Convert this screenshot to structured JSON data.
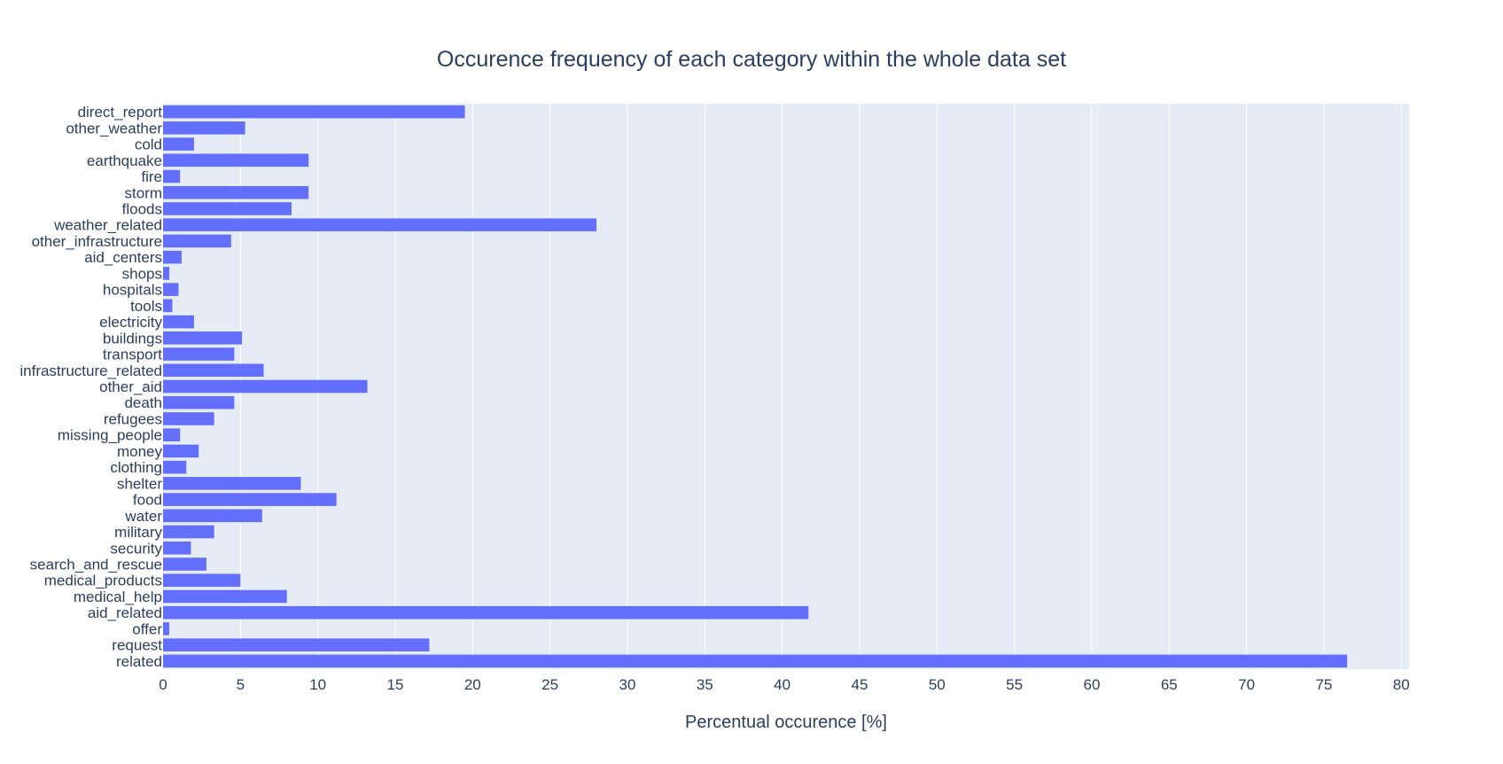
{
  "chart_data": {
    "type": "bar",
    "orientation": "horizontal",
    "title": "Occurence frequency of each category within the whole data set",
    "xlabel": "Percentual occurence [%]",
    "ylabel": "",
    "xlim": [
      0,
      80.5
    ],
    "xticks": [
      0,
      5,
      10,
      15,
      20,
      25,
      30,
      35,
      40,
      45,
      50,
      55,
      60,
      65,
      70,
      75,
      80
    ],
    "grid": true,
    "legend": "none",
    "colors": {
      "bar": "#636efa",
      "plot_bg": "#e5ecf6",
      "grid": "#ffffff",
      "text": "#2a3f5f"
    },
    "categories": [
      "related",
      "request",
      "offer",
      "aid_related",
      "medical_help",
      "medical_products",
      "search_and_rescue",
      "security",
      "military",
      "water",
      "food",
      "shelter",
      "clothing",
      "money",
      "missing_people",
      "refugees",
      "death",
      "other_aid",
      "infrastructure_related",
      "transport",
      "buildings",
      "electricity",
      "tools",
      "hospitals",
      "shops",
      "aid_centers",
      "other_infrastructure",
      "weather_related",
      "floods",
      "storm",
      "fire",
      "earthquake",
      "cold",
      "other_weather",
      "direct_report"
    ],
    "values": [
      76.5,
      17.2,
      0.4,
      41.7,
      8.0,
      5.0,
      2.8,
      1.8,
      3.3,
      6.4,
      11.2,
      8.9,
      1.5,
      2.3,
      1.1,
      3.3,
      4.6,
      13.2,
      6.5,
      4.6,
      5.1,
      2.0,
      0.6,
      1.0,
      0.4,
      1.2,
      4.4,
      28.0,
      8.3,
      9.4,
      1.1,
      9.4,
      2.0,
      5.3,
      19.5
    ]
  }
}
